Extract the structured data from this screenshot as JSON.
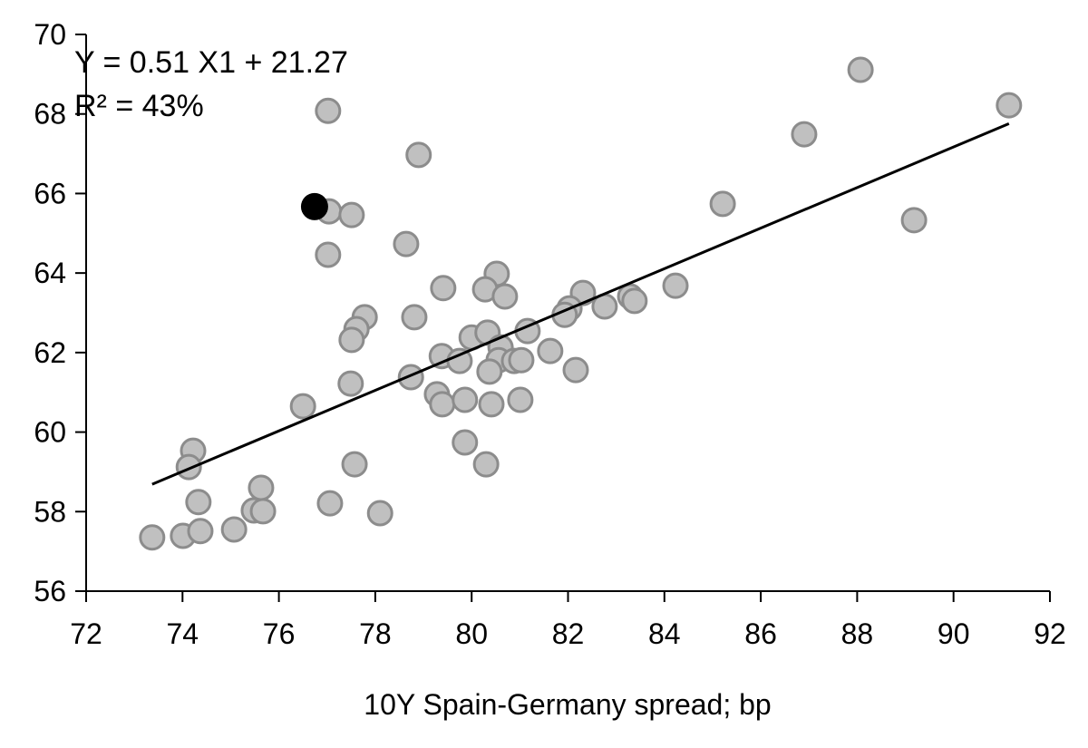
{
  "chart_data": {
    "type": "scatter",
    "title": "",
    "xlabel": "10Y Spain-Germany spread; bp",
    "ylabel": "",
    "xlim": [
      72,
      92
    ],
    "ylim": [
      56,
      70
    ],
    "xticks": [
      "72",
      "74",
      "76",
      "78",
      "80",
      "82",
      "84",
      "86",
      "88",
      "90",
      "92"
    ],
    "yticks": [
      "56",
      "58",
      "60",
      "62",
      "64",
      "66",
      "68",
      "70"
    ],
    "grid": false,
    "annotations": [
      "Y = 0.51 X1 + 21.27",
      "R² = 43%"
    ],
    "trendline": {
      "slope": 0.51,
      "intercept": 21.27,
      "x_range": [
        73.37,
        91.15
      ]
    },
    "colors": {
      "points": "#c0c0c0",
      "point_edge": "#8c8c8c",
      "highlight": "#000000",
      "line": "#000000"
    },
    "highlight": {
      "x": 76.74,
      "y": 65.67
    },
    "points": [
      [
        77.04,
        65.55
      ],
      [
        77.51,
        65.46
      ],
      [
        78.64,
        64.73
      ],
      [
        77.02,
        64.46
      ],
      [
        80.52,
        63.98
      ],
      [
        80.28,
        63.59
      ],
      [
        80.69,
        63.41
      ],
      [
        79.41,
        63.62
      ],
      [
        82.31,
        63.5
      ],
      [
        82.76,
        63.16
      ],
      [
        83.29,
        63.41
      ],
      [
        83.38,
        63.3
      ],
      [
        82.03,
        63.11
      ],
      [
        81.93,
        62.95
      ],
      [
        77.78,
        62.89
      ],
      [
        77.61,
        62.59
      ],
      [
        77.51,
        62.32
      ],
      [
        78.81,
        62.89
      ],
      [
        80.0,
        62.38
      ],
      [
        80.33,
        62.5
      ],
      [
        81.16,
        62.54
      ],
      [
        80.6,
        62.13
      ],
      [
        79.38,
        61.91
      ],
      [
        79.75,
        61.79
      ],
      [
        80.56,
        61.81
      ],
      [
        80.88,
        61.79
      ],
      [
        81.03,
        61.81
      ],
      [
        81.63,
        62.04
      ],
      [
        82.16,
        61.56
      ],
      [
        80.37,
        61.52
      ],
      [
        77.49,
        61.22
      ],
      [
        78.74,
        61.38
      ],
      [
        76.5,
        60.65
      ],
      [
        79.28,
        60.95
      ],
      [
        79.39,
        60.7
      ],
      [
        79.86,
        60.81
      ],
      [
        80.41,
        60.7
      ],
      [
        81.01,
        60.81
      ],
      [
        79.86,
        59.74
      ],
      [
        80.3,
        59.19
      ],
      [
        77.57,
        59.19
      ],
      [
        77.02,
        68.08
      ],
      [
        78.9,
        66.97
      ],
      [
        84.23,
        63.68
      ],
      [
        85.21,
        65.74
      ],
      [
        86.9,
        67.49
      ],
      [
        88.07,
        69.11
      ],
      [
        89.18,
        65.33
      ],
      [
        91.15,
        68.22
      ],
      [
        74.22,
        59.53
      ],
      [
        74.13,
        59.12
      ],
      [
        74.33,
        58.24
      ],
      [
        73.37,
        57.35
      ],
      [
        74.01,
        57.39
      ],
      [
        74.37,
        57.51
      ],
      [
        75.07,
        57.55
      ],
      [
        75.63,
        58.6
      ],
      [
        75.48,
        58.03
      ],
      [
        75.67,
        58.01
      ],
      [
        77.06,
        58.21
      ],
      [
        78.1,
        57.96
      ]
    ]
  }
}
